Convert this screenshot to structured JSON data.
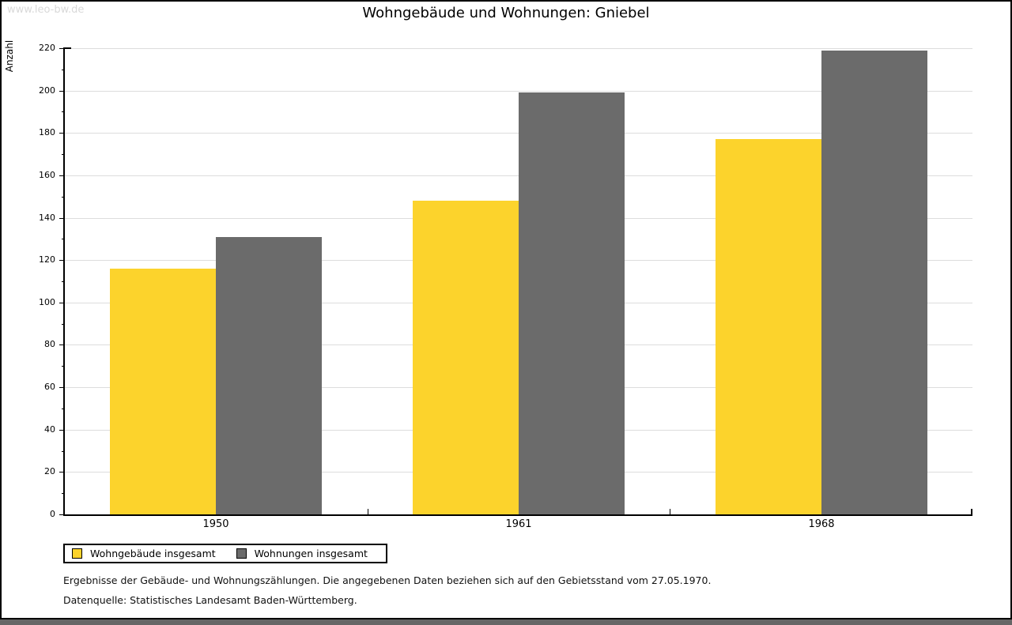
{
  "watermark": "www.leo-bw.de",
  "chart_data": {
    "type": "bar",
    "title": "Wohngebäude und Wohnungen: Gniebel",
    "ylabel": "Anzahl",
    "xlabel": "",
    "ylim": [
      0,
      220
    ],
    "ytick_step": 20,
    "ytick_minor_step": 10,
    "grid": "horizontal",
    "categories": [
      "1950",
      "1961",
      "1968"
    ],
    "series": [
      {
        "name": "Wohngebäude insgesamt",
        "color": "#FCD32C",
        "values": [
          116,
          148,
          177
        ]
      },
      {
        "name": "Wohnungen insgesamt",
        "color": "#6B6B6B",
        "values": [
          131,
          199,
          219
        ]
      }
    ],
    "legend_position": "bottom-left"
  },
  "footnotes": [
    "Ergebnisse der Gebäude- und Wohnungszählungen. Die angegebenen Daten beziehen sich auf den Gebietsstand vom 27.05.1970.",
    "Datenquelle: Statistisches Landesamt Baden-Württemberg."
  ]
}
